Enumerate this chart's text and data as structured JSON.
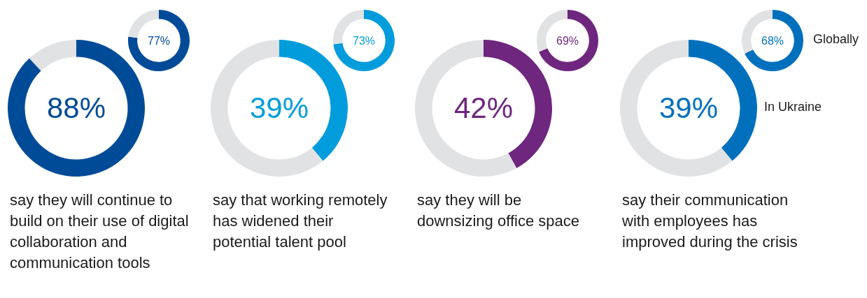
{
  "chart_data": [
    {
      "type": "donut",
      "title": "say they will continue to build on their use of digital collaboration and communication tools",
      "categories": [
        null,
        null
      ],
      "values": [
        88,
        12
      ],
      "colors": [
        "#004b98",
        "#e1e2e4"
      ],
      "value_labels": [
        "88%",
        null
      ],
      "legend": false
    },
    {
      "type": "donut",
      "categories": [
        null,
        null
      ],
      "values": [
        77,
        23
      ],
      "colors": [
        "#004b98",
        "#e1e2e4"
      ],
      "value_labels": [
        "77%",
        null
      ],
      "legend": false
    },
    {
      "type": "donut",
      "title": "say that working remotely has widened their potential talent pool",
      "categories": [
        null,
        null
      ],
      "values": [
        39,
        61
      ],
      "colors": [
        "#009cdc",
        "#e1e2e4"
      ],
      "value_labels": [
        "39%",
        null
      ],
      "legend": false
    },
    {
      "type": "donut",
      "categories": [
        null,
        null
      ],
      "values": [
        73,
        27
      ],
      "colors": [
        "#009cdc",
        "#e1e2e4"
      ],
      "value_labels": [
        "73%",
        null
      ],
      "legend": false
    },
    {
      "type": "donut",
      "title": "say they will be downsizing office space",
      "categories": [
        null,
        null
      ],
      "values": [
        42,
        58
      ],
      "colors": [
        "#6e267f",
        "#e1e2e4"
      ],
      "value_labels": [
        "42%",
        null
      ],
      "legend": false
    },
    {
      "type": "donut",
      "categories": [
        null,
        null
      ],
      "values": [
        69,
        31
      ],
      "colors": [
        "#6e267f",
        "#e1e2e4"
      ],
      "value_labels": [
        "69%",
        null
      ],
      "legend": false
    },
    {
      "type": "donut",
      "title": "say their communication with employees has improved during the crisis",
      "categories": [
        null,
        null
      ],
      "values": [
        39,
        61
      ],
      "colors": [
        "#0070bd",
        "#e1e2e4"
      ],
      "value_labels": [
        "39%",
        null
      ],
      "legend": false,
      "annotations": [
        "In Ukraine"
      ]
    },
    {
      "type": "donut",
      "categories": [
        null,
        null
      ],
      "values": [
        68,
        32
      ],
      "colors": [
        "#0070bd",
        "#e1e2e4"
      ],
      "value_labels": [
        "68%",
        null
      ],
      "legend": false,
      "annotations": [
        "Globally"
      ]
    }
  ]
}
